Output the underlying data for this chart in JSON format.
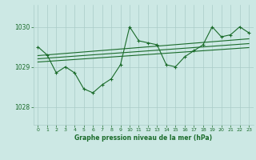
{
  "title": "Graphe pression niveau de la mer (hPa)",
  "bg_color": "#cce8e4",
  "grid_color": "#aaccc8",
  "line_color": "#1a6b2a",
  "text_color": "#1a6b2a",
  "xlim": [
    -0.5,
    23.5
  ],
  "ylim": [
    1027.55,
    1030.55
  ],
  "yticks": [
    1028,
    1029,
    1030
  ],
  "xticks": [
    0,
    1,
    2,
    3,
    4,
    5,
    6,
    7,
    8,
    9,
    10,
    11,
    12,
    13,
    14,
    15,
    16,
    17,
    18,
    19,
    20,
    21,
    22,
    23
  ],
  "main_series": [
    1029.5,
    1029.3,
    1028.85,
    1029.0,
    1028.85,
    1028.45,
    1028.35,
    1028.55,
    1028.7,
    1029.05,
    1030.0,
    1029.65,
    1029.6,
    1029.55,
    1029.05,
    1029.0,
    1029.25,
    1029.4,
    1029.55,
    1030.0,
    1029.75,
    1029.8,
    1030.0,
    1029.85
  ],
  "trend_line1": [
    1029.12,
    1029.48
  ],
  "trend_line1_x": [
    0,
    23
  ],
  "trend_line2": [
    1029.2,
    1029.58
  ],
  "trend_line2_x": [
    0,
    23
  ],
  "trend_line3": [
    1029.28,
    1029.7
  ],
  "trend_line3_x": [
    0,
    23
  ]
}
